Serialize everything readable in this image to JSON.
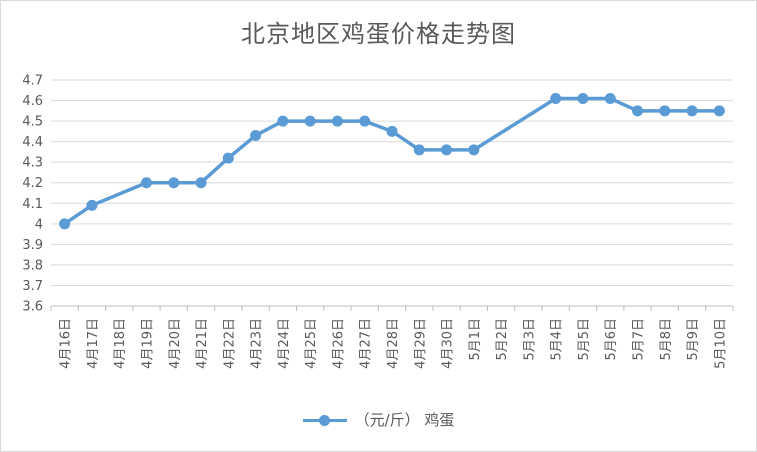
{
  "chart_data": {
    "type": "line",
    "title": "北京地区鸡蛋价格走势图",
    "xlabel": "",
    "ylabel": "",
    "ylim": [
      3.6,
      4.7
    ],
    "yticks": [
      "3.6",
      "3.7",
      "3.8",
      "3.9",
      "4",
      "4.1",
      "4.2",
      "4.3",
      "4.4",
      "4.5",
      "4.6",
      "4.7"
    ],
    "grid": true,
    "legend_position": "bottom",
    "categories": [
      "4月16日",
      "4月17日",
      "4月18日",
      "4月19日",
      "4月20日",
      "4月21日",
      "4月22日",
      "4月23日",
      "4月24日",
      "4月25日",
      "4月26日",
      "4月27日",
      "4月28日",
      "4月29日",
      "4月30日",
      "5月1日",
      "5月2日",
      "5月3日",
      "5月4日",
      "5月5日",
      "5月6日",
      "5月7日",
      "5月8日",
      "5月9日",
      "5月10日"
    ],
    "series": [
      {
        "name": "（元/斤） 鸡蛋",
        "color": "#5b9bd5",
        "values": [
          4.0,
          4.09,
          null,
          4.2,
          4.2,
          4.2,
          4.32,
          4.43,
          4.5,
          4.5,
          4.5,
          4.5,
          4.45,
          4.36,
          4.36,
          4.36,
          null,
          null,
          4.61,
          4.61,
          4.61,
          4.55,
          4.55,
          4.55,
          4.55
        ]
      }
    ]
  }
}
